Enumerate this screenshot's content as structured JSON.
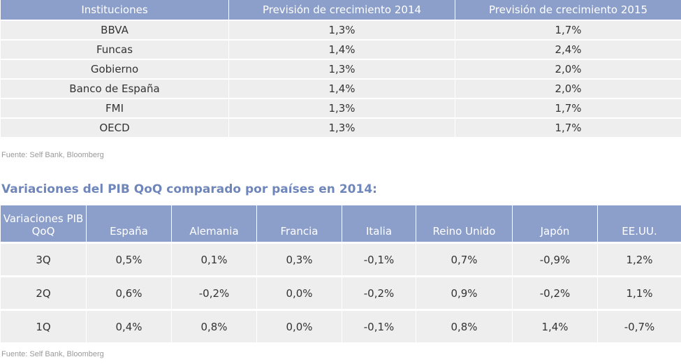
{
  "table1": {
    "headers": [
      "Instituciones",
      "Previsión de crecimiento 2014",
      "Previsión de crecimiento 2015"
    ],
    "rows": [
      [
        "BBVA",
        "1,3%",
        "1,7%"
      ],
      [
        "Funcas",
        "1,4%",
        "2,4%"
      ],
      [
        "Gobierno",
        "1,3%",
        "2,0%"
      ],
      [
        "Banco de España",
        "1,4%",
        "2,0%"
      ],
      [
        "FMI",
        "1,3%",
        "1,7%"
      ],
      [
        "OECD",
        "1,3%",
        "1,7%"
      ]
    ],
    "source": "Fuente: Self Bank, Bloomberg"
  },
  "section2": {
    "title": "Variaciones del PIB QoQ comparado por países en 2014:"
  },
  "table2": {
    "headers": [
      "Variaciones PIB QoQ",
      "España",
      "Alemania",
      "Francia",
      "Italia",
      "Reino Unido",
      "Japón",
      "EE.UU."
    ],
    "rows": [
      [
        "3Q",
        "0,5%",
        "0,1%",
        "0,3%",
        "-0,1%",
        "0,7%",
        "-0,9%",
        "1,2%"
      ],
      [
        "2Q",
        "0,6%",
        "-0,2%",
        "0,0%",
        "-0,2%",
        "0,9%",
        "-0,2%",
        "1,1%"
      ],
      [
        "1Q",
        "0,4%",
        "0,8%",
        "0,0%",
        "-0,1%",
        "0,8%",
        "1,4%",
        "-0,7%"
      ]
    ],
    "source": "Fuente: Self Bank, Bloomberg"
  }
}
